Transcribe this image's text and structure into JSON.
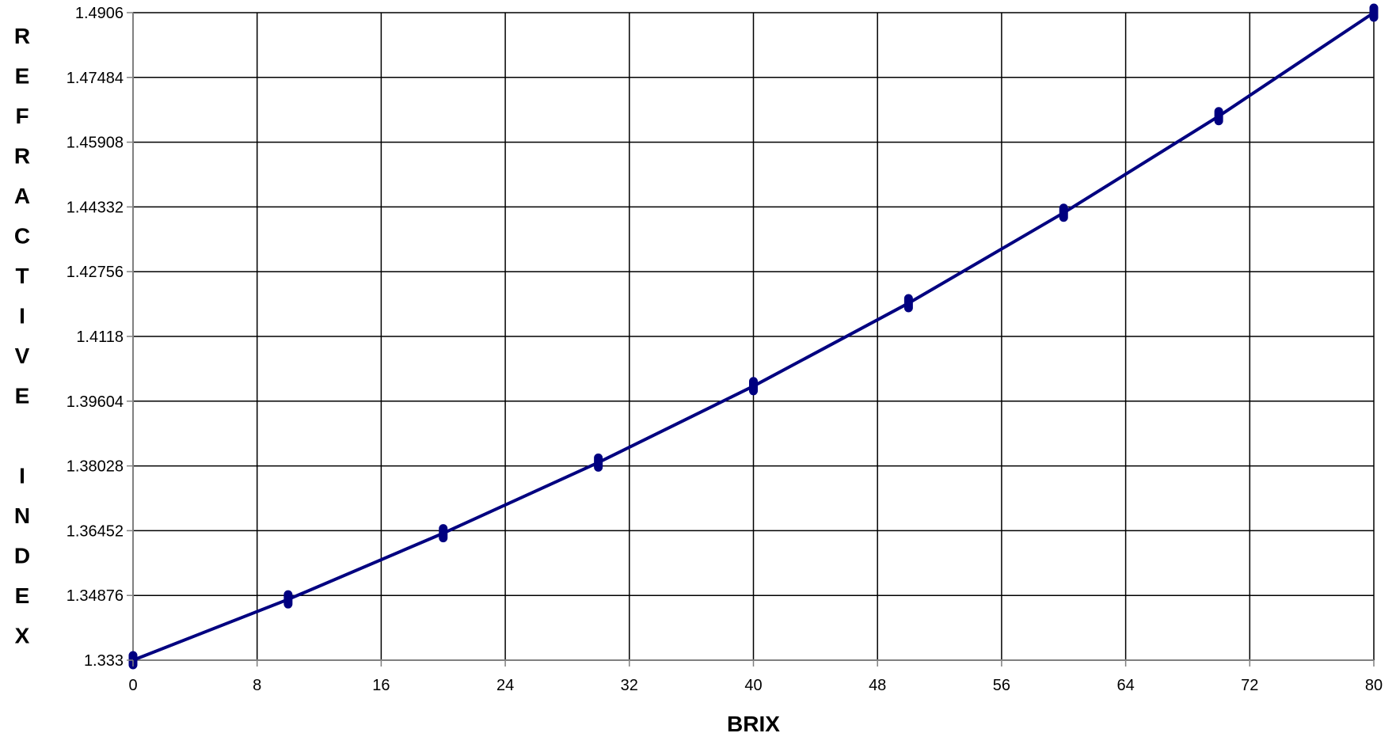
{
  "chart_data": {
    "type": "line",
    "title": "",
    "xlabel": "BRIX",
    "ylabel": "REFRACTIVE INDEX",
    "xlim": [
      0,
      80
    ],
    "ylim": [
      1.333,
      1.4906
    ],
    "x_ticks": [
      "0",
      "8",
      "16",
      "24",
      "32",
      "40",
      "48",
      "56",
      "64",
      "72",
      "80"
    ],
    "y_ticks": [
      "1.333",
      "1.34876",
      "1.36452",
      "1.38028",
      "1.39604",
      "1.4118",
      "1.42756",
      "1.44332",
      "1.45908",
      "1.47484",
      "1.4906"
    ],
    "grid": true,
    "legend": "none",
    "series": [
      {
        "x": [
          0,
          10,
          20,
          30,
          40,
          50,
          60,
          70,
          80
        ],
        "y": [
          1.333,
          1.3478,
          1.3639,
          1.3811,
          1.3997,
          1.4199,
          1.4419,
          1.4654,
          1.4906
        ]
      }
    ],
    "colors": {
      "line": "#000080",
      "grid": "#000000",
      "axis": "#808080"
    }
  }
}
